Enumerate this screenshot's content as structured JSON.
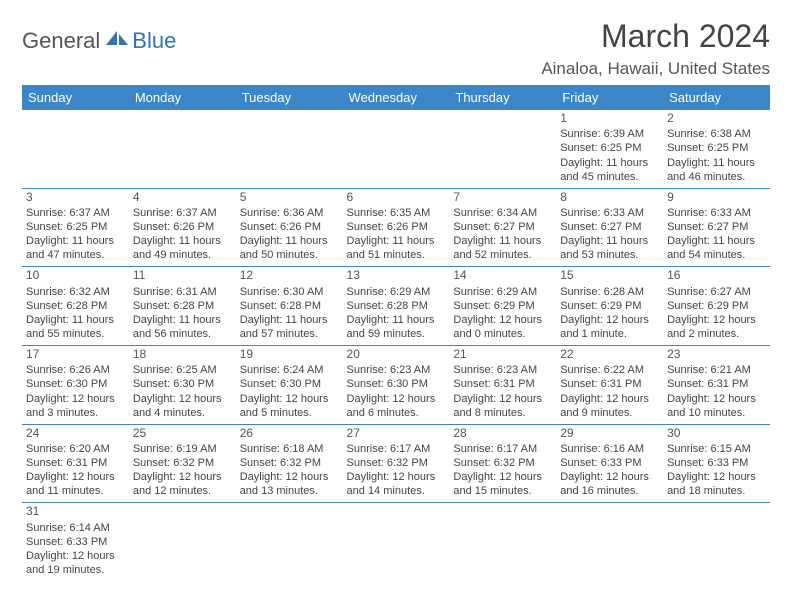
{
  "brand": {
    "part1": "General",
    "part2": "Blue"
  },
  "title": "March 2024",
  "location": "Ainaloa, Hawaii, United States",
  "header_color": "#3a86c8",
  "weekdays": [
    "Sunday",
    "Monday",
    "Tuesday",
    "Wednesday",
    "Thursday",
    "Friday",
    "Saturday"
  ],
  "cell_font_size": 11,
  "daynum_font_size": 12,
  "title_font_size": 32,
  "location_font_size": 17,
  "weeks": [
    [
      null,
      null,
      null,
      null,
      null,
      {
        "n": "1",
        "sr": "Sunrise: 6:39 AM",
        "ss": "Sunset: 6:25 PM",
        "d1": "Daylight: 11 hours",
        "d2": "and 45 minutes."
      },
      {
        "n": "2",
        "sr": "Sunrise: 6:38 AM",
        "ss": "Sunset: 6:25 PM",
        "d1": "Daylight: 11 hours",
        "d2": "and 46 minutes."
      }
    ],
    [
      {
        "n": "3",
        "sr": "Sunrise: 6:37 AM",
        "ss": "Sunset: 6:25 PM",
        "d1": "Daylight: 11 hours",
        "d2": "and 47 minutes."
      },
      {
        "n": "4",
        "sr": "Sunrise: 6:37 AM",
        "ss": "Sunset: 6:26 PM",
        "d1": "Daylight: 11 hours",
        "d2": "and 49 minutes."
      },
      {
        "n": "5",
        "sr": "Sunrise: 6:36 AM",
        "ss": "Sunset: 6:26 PM",
        "d1": "Daylight: 11 hours",
        "d2": "and 50 minutes."
      },
      {
        "n": "6",
        "sr": "Sunrise: 6:35 AM",
        "ss": "Sunset: 6:26 PM",
        "d1": "Daylight: 11 hours",
        "d2": "and 51 minutes."
      },
      {
        "n": "7",
        "sr": "Sunrise: 6:34 AM",
        "ss": "Sunset: 6:27 PM",
        "d1": "Daylight: 11 hours",
        "d2": "and 52 minutes."
      },
      {
        "n": "8",
        "sr": "Sunrise: 6:33 AM",
        "ss": "Sunset: 6:27 PM",
        "d1": "Daylight: 11 hours",
        "d2": "and 53 minutes."
      },
      {
        "n": "9",
        "sr": "Sunrise: 6:33 AM",
        "ss": "Sunset: 6:27 PM",
        "d1": "Daylight: 11 hours",
        "d2": "and 54 minutes."
      }
    ],
    [
      {
        "n": "10",
        "sr": "Sunrise: 6:32 AM",
        "ss": "Sunset: 6:28 PM",
        "d1": "Daylight: 11 hours",
        "d2": "and 55 minutes."
      },
      {
        "n": "11",
        "sr": "Sunrise: 6:31 AM",
        "ss": "Sunset: 6:28 PM",
        "d1": "Daylight: 11 hours",
        "d2": "and 56 minutes."
      },
      {
        "n": "12",
        "sr": "Sunrise: 6:30 AM",
        "ss": "Sunset: 6:28 PM",
        "d1": "Daylight: 11 hours",
        "d2": "and 57 minutes."
      },
      {
        "n": "13",
        "sr": "Sunrise: 6:29 AM",
        "ss": "Sunset: 6:28 PM",
        "d1": "Daylight: 11 hours",
        "d2": "and 59 minutes."
      },
      {
        "n": "14",
        "sr": "Sunrise: 6:29 AM",
        "ss": "Sunset: 6:29 PM",
        "d1": "Daylight: 12 hours",
        "d2": "and 0 minutes."
      },
      {
        "n": "15",
        "sr": "Sunrise: 6:28 AM",
        "ss": "Sunset: 6:29 PM",
        "d1": "Daylight: 12 hours",
        "d2": "and 1 minute."
      },
      {
        "n": "16",
        "sr": "Sunrise: 6:27 AM",
        "ss": "Sunset: 6:29 PM",
        "d1": "Daylight: 12 hours",
        "d2": "and 2 minutes."
      }
    ],
    [
      {
        "n": "17",
        "sr": "Sunrise: 6:26 AM",
        "ss": "Sunset: 6:30 PM",
        "d1": "Daylight: 12 hours",
        "d2": "and 3 minutes."
      },
      {
        "n": "18",
        "sr": "Sunrise: 6:25 AM",
        "ss": "Sunset: 6:30 PM",
        "d1": "Daylight: 12 hours",
        "d2": "and 4 minutes."
      },
      {
        "n": "19",
        "sr": "Sunrise: 6:24 AM",
        "ss": "Sunset: 6:30 PM",
        "d1": "Daylight: 12 hours",
        "d2": "and 5 minutes."
      },
      {
        "n": "20",
        "sr": "Sunrise: 6:23 AM",
        "ss": "Sunset: 6:30 PM",
        "d1": "Daylight: 12 hours",
        "d2": "and 6 minutes."
      },
      {
        "n": "21",
        "sr": "Sunrise: 6:23 AM",
        "ss": "Sunset: 6:31 PM",
        "d1": "Daylight: 12 hours",
        "d2": "and 8 minutes."
      },
      {
        "n": "22",
        "sr": "Sunrise: 6:22 AM",
        "ss": "Sunset: 6:31 PM",
        "d1": "Daylight: 12 hours",
        "d2": "and 9 minutes."
      },
      {
        "n": "23",
        "sr": "Sunrise: 6:21 AM",
        "ss": "Sunset: 6:31 PM",
        "d1": "Daylight: 12 hours",
        "d2": "and 10 minutes."
      }
    ],
    [
      {
        "n": "24",
        "sr": "Sunrise: 6:20 AM",
        "ss": "Sunset: 6:31 PM",
        "d1": "Daylight: 12 hours",
        "d2": "and 11 minutes."
      },
      {
        "n": "25",
        "sr": "Sunrise: 6:19 AM",
        "ss": "Sunset: 6:32 PM",
        "d1": "Daylight: 12 hours",
        "d2": "and 12 minutes."
      },
      {
        "n": "26",
        "sr": "Sunrise: 6:18 AM",
        "ss": "Sunset: 6:32 PM",
        "d1": "Daylight: 12 hours",
        "d2": "and 13 minutes."
      },
      {
        "n": "27",
        "sr": "Sunrise: 6:17 AM",
        "ss": "Sunset: 6:32 PM",
        "d1": "Daylight: 12 hours",
        "d2": "and 14 minutes."
      },
      {
        "n": "28",
        "sr": "Sunrise: 6:17 AM",
        "ss": "Sunset: 6:32 PM",
        "d1": "Daylight: 12 hours",
        "d2": "and 15 minutes."
      },
      {
        "n": "29",
        "sr": "Sunrise: 6:16 AM",
        "ss": "Sunset: 6:33 PM",
        "d1": "Daylight: 12 hours",
        "d2": "and 16 minutes."
      },
      {
        "n": "30",
        "sr": "Sunrise: 6:15 AM",
        "ss": "Sunset: 6:33 PM",
        "d1": "Daylight: 12 hours",
        "d2": "and 18 minutes."
      }
    ],
    [
      {
        "n": "31",
        "sr": "Sunrise: 6:14 AM",
        "ss": "Sunset: 6:33 PM",
        "d1": "Daylight: 12 hours",
        "d2": "and 19 minutes."
      },
      null,
      null,
      null,
      null,
      null,
      null
    ]
  ]
}
